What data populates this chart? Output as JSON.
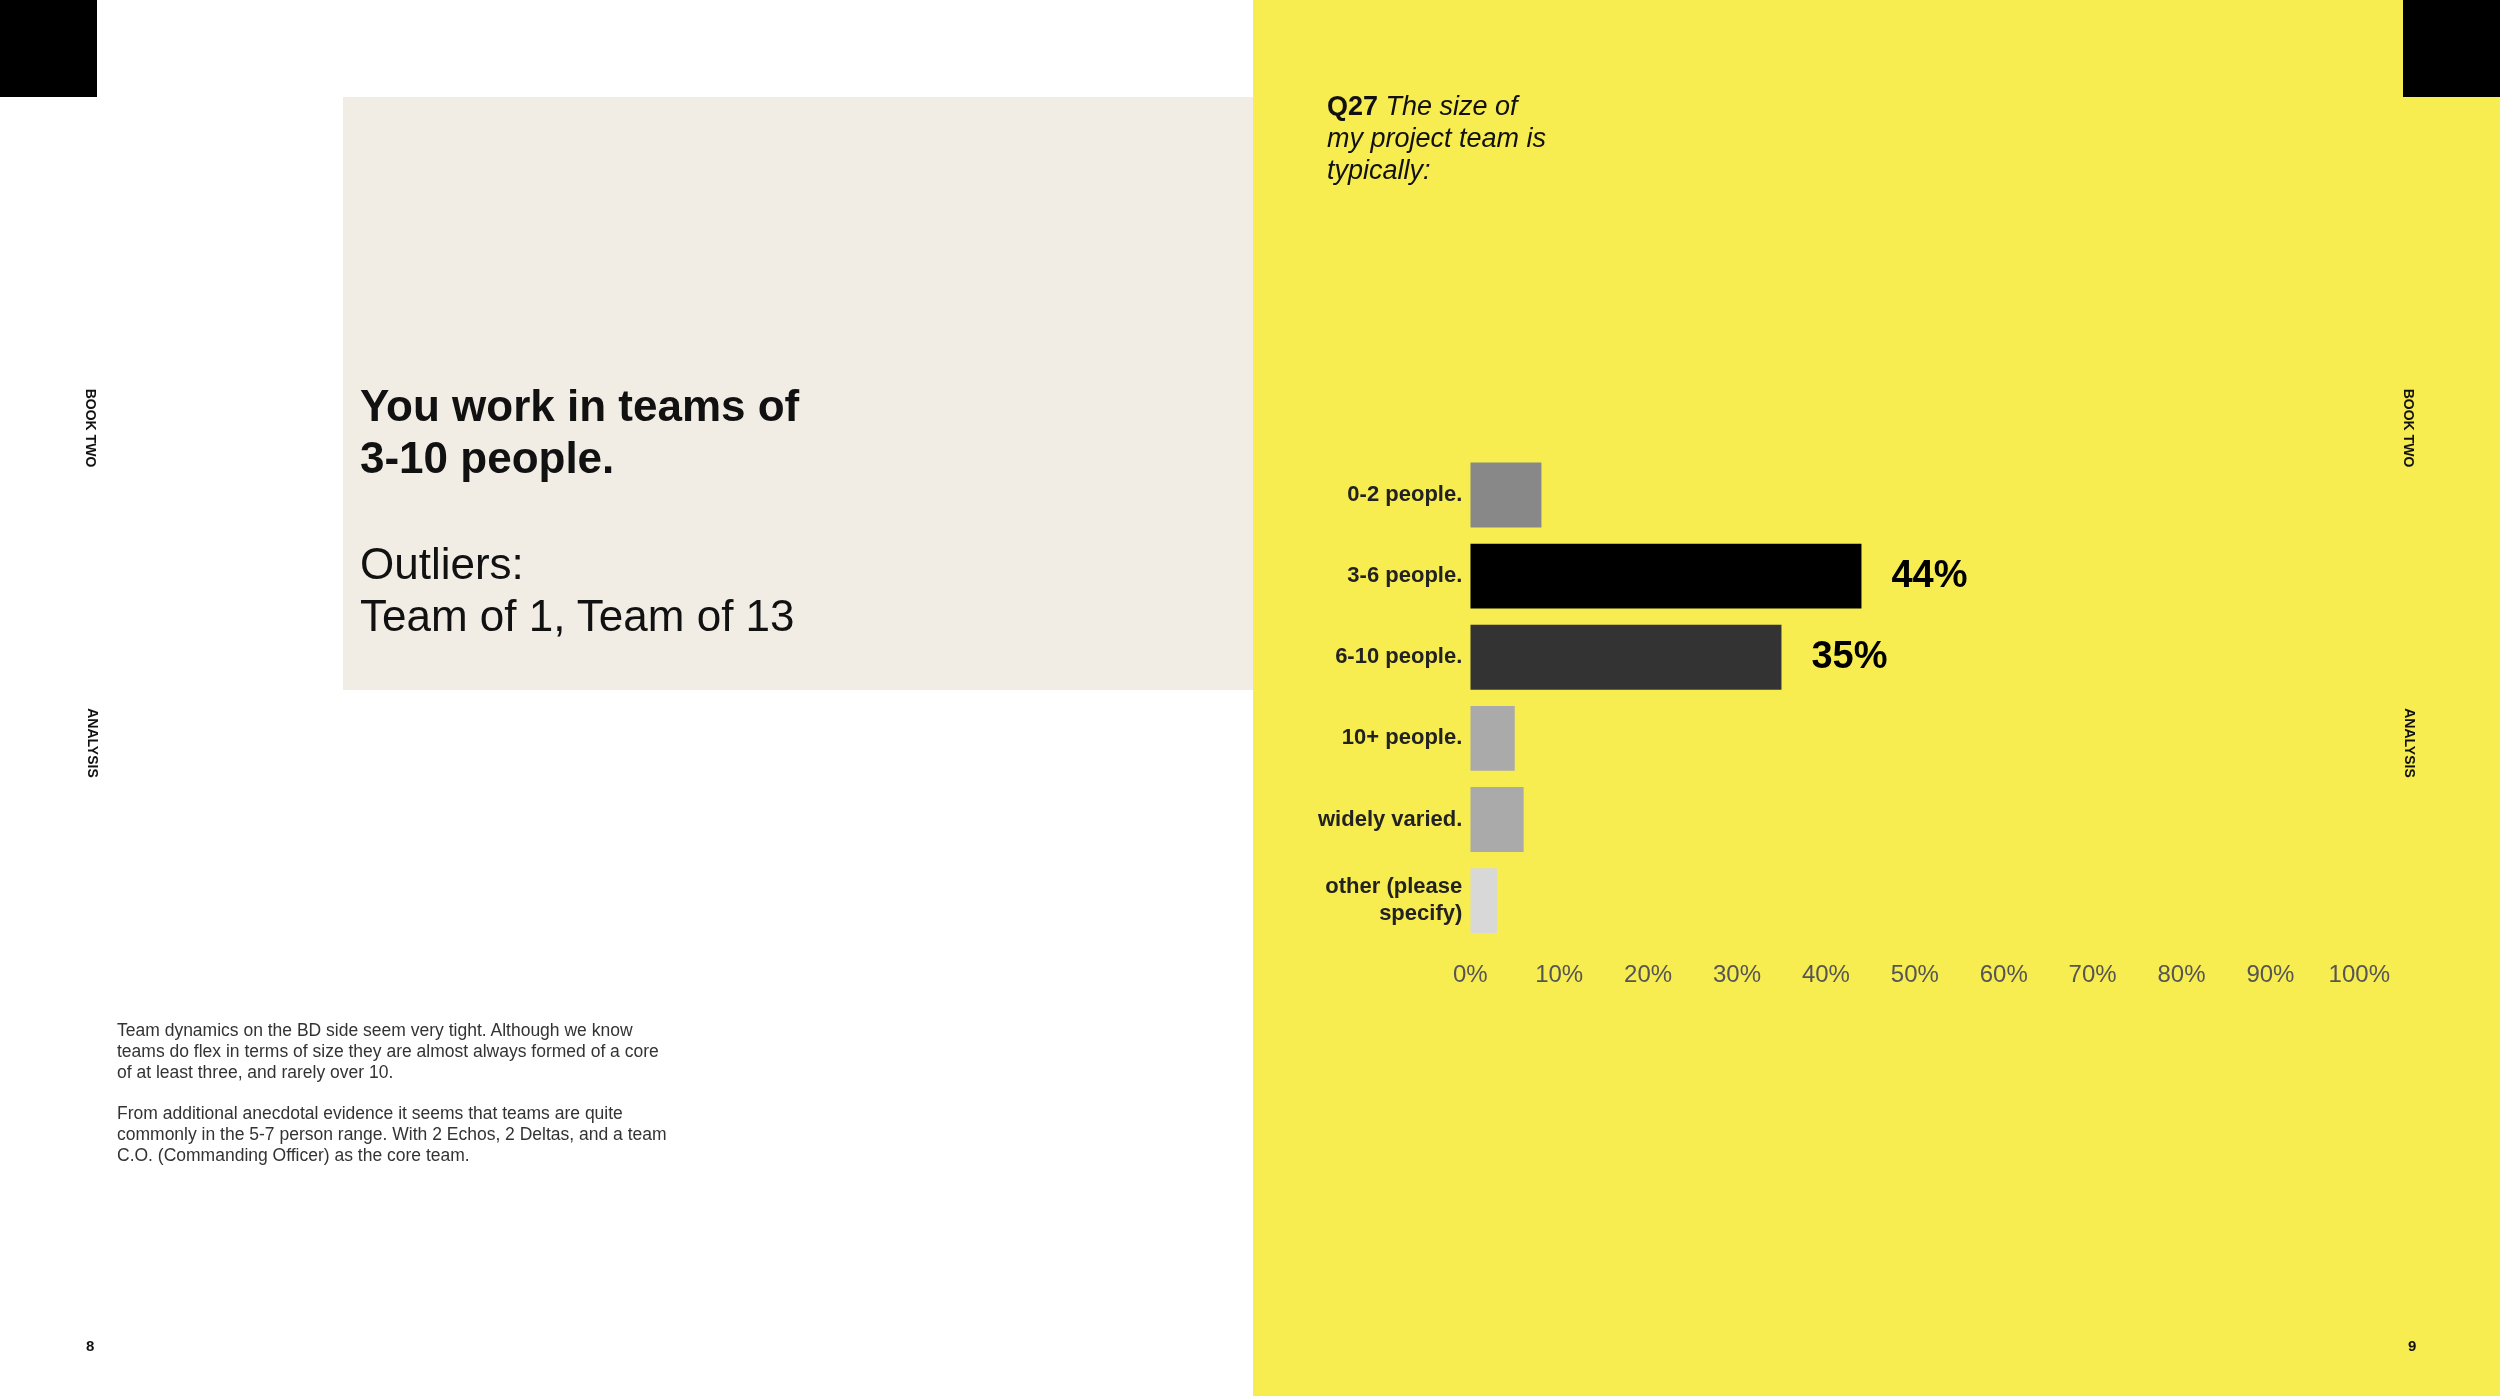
{
  "chart_data": {
    "type": "bar",
    "orientation": "horizontal",
    "title": "Q27 The size of my project team is typically:",
    "categories": [
      "0-2 people.",
      "3-6 people.",
      "6-10 people.",
      "10+ people.",
      "widely varied.",
      "other (please specify)"
    ],
    "values": [
      8,
      44,
      35,
      5,
      6,
      3
    ],
    "colors": [
      "#888888",
      "#000000",
      "#333333",
      "#aaaaaa",
      "#aaaaaa",
      "#d8d8d8"
    ],
    "value_labels": [
      null,
      "44%",
      "35%",
      null,
      null,
      null
    ],
    "xlim": [
      0,
      100
    ],
    "xticks": [
      {
        "value": 0,
        "label": "0%"
      },
      {
        "value": 10,
        "label": "10%"
      },
      {
        "value": 20,
        "label": "20%"
      },
      {
        "value": 30,
        "label": "30%"
      },
      {
        "value": 40,
        "label": "40%"
      },
      {
        "value": 50,
        "label": "50%"
      },
      {
        "value": 60,
        "label": "60%"
      },
      {
        "value": 70,
        "label": "70%"
      },
      {
        "value": 80,
        "label": "80%"
      },
      {
        "value": 90,
        "label": "90%"
      },
      {
        "value": 100,
        "label": "100%"
      }
    ],
    "grid": false,
    "legend": false,
    "annotations": [
      "You work in teams of\n3-10 people.",
      "Outliers:\nTeam of 1, Team of 13",
      "Team dynamics on the BD side seem very tight.  Although we know teams do flex in terms of size they are almost always formed of a core of at least three, and rarely over 10.",
      "From additional anecdotal evidence it seems that teams are quite commonly in the 5-7 person range.  With 2 Echos, 2 Deltas, and a team C.O. (Commanding Officer) as the core team.",
      "BOOK TWO",
      "ANALYSIS",
      "BOOK TWO",
      "ANALYSIS",
      "8",
      "9"
    ]
  }
}
